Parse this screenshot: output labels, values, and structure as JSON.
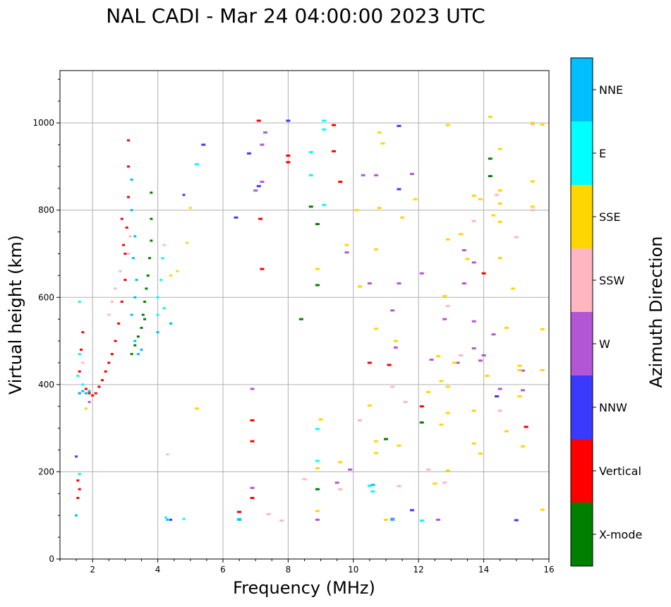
{
  "chart_data": {
    "type": "scatter",
    "title": "NAL CADI - Mar 24 04:00:00 2023 UTC",
    "xlabel": "Frequency (MHz)",
    "ylabel": "Virtual height (km)",
    "xlim": [
      1,
      16
    ],
    "ylim": [
      0,
      1120
    ],
    "x_ticks": [
      2,
      4,
      6,
      8,
      10,
      12,
      14,
      16
    ],
    "y_ticks": [
      0,
      200,
      400,
      600,
      800,
      1000
    ],
    "x_tick_labels": [
      "2",
      "4",
      "6",
      "8",
      "10",
      "12",
      "14",
      "16"
    ],
    "y_tick_labels": [
      "0",
      "200",
      "400",
      "600",
      "800",
      "1000"
    ],
    "grid": true,
    "colorbar": {
      "label": "Azimuth Direction",
      "categories": [
        {
          "name": "X-mode",
          "color": "#008000"
        },
        {
          "name": "Vertical",
          "color": "#ff0000"
        },
        {
          "name": "NNW",
          "color": "#3a3aff"
        },
        {
          "name": "W",
          "color": "#b356d6"
        },
        {
          "name": "SSW",
          "color": "#ffb6c1"
        },
        {
          "name": "SSE",
          "color": "#ffd700"
        },
        {
          "name": "E",
          "color": "#00ffff"
        },
        {
          "name": "NNE",
          "color": "#00bfff"
        }
      ]
    },
    "series": [
      {
        "name": "X-mode",
        "points": [
          [
            3.2,
            470
          ],
          [
            3.3,
            490
          ],
          [
            3.4,
            510
          ],
          [
            3.5,
            530
          ],
          [
            3.55,
            560
          ],
          [
            3.6,
            590
          ],
          [
            3.65,
            620
          ],
          [
            3.7,
            650
          ],
          [
            3.75,
            690
          ],
          [
            3.8,
            730
          ],
          [
            3.8,
            780
          ],
          [
            3.8,
            840
          ],
          [
            3.6,
            550
          ],
          [
            8.4,
            550
          ],
          [
            8.7,
            808
          ],
          [
            8.9,
            768
          ],
          [
            8.9,
            628
          ],
          [
            11.0,
            275
          ],
          [
            12.1,
            313
          ],
          [
            14.2,
            918
          ],
          [
            14.2,
            878
          ],
          [
            8.9,
            160
          ]
        ]
      },
      {
        "name": "Vertical",
        "points": [
          [
            1.55,
            140
          ],
          [
            1.6,
            160
          ],
          [
            1.55,
            180
          ],
          [
            1.6,
            380
          ],
          [
            1.6,
            430
          ],
          [
            1.65,
            480
          ],
          [
            1.7,
            520
          ],
          [
            1.8,
            390
          ],
          [
            1.9,
            380
          ],
          [
            2.0,
            375
          ],
          [
            2.1,
            380
          ],
          [
            2.2,
            395
          ],
          [
            2.3,
            410
          ],
          [
            2.4,
            430
          ],
          [
            2.5,
            450
          ],
          [
            2.6,
            470
          ],
          [
            2.7,
            500
          ],
          [
            2.8,
            540
          ],
          [
            2.9,
            590
          ],
          [
            3.0,
            640
          ],
          [
            3.0,
            700
          ],
          [
            3.05,
            760
          ],
          [
            3.1,
            830
          ],
          [
            3.1,
            900
          ],
          [
            3.1,
            960
          ],
          [
            2.9,
            780
          ],
          [
            2.95,
            720
          ],
          [
            7.1,
            1005
          ],
          [
            7.15,
            780
          ],
          [
            7.2,
            665
          ],
          [
            6.9,
            318
          ],
          [
            6.9,
            270
          ],
          [
            6.5,
            108
          ],
          [
            6.9,
            140
          ],
          [
            9.4,
            995
          ],
          [
            9.4,
            935
          ],
          [
            9.6,
            865
          ],
          [
            10.5,
            450
          ],
          [
            11.1,
            445
          ],
          [
            12.1,
            350
          ],
          [
            14.0,
            655
          ],
          [
            14.4,
            373
          ],
          [
            15.3,
            303
          ],
          [
            8.0,
            925
          ],
          [
            8.0,
            910
          ]
        ]
      },
      {
        "name": "NNW",
        "points": [
          [
            1.5,
            235
          ],
          [
            6.4,
            783
          ],
          [
            6.8,
            930
          ],
          [
            7.1,
            855
          ],
          [
            8.0,
            1005
          ],
          [
            11.4,
            993
          ],
          [
            11.4,
            848
          ],
          [
            11.8,
            112
          ],
          [
            15.0,
            89
          ],
          [
            14.4,
            373
          ],
          [
            4.8,
            835
          ],
          [
            5.4,
            950
          ],
          [
            4.4,
            90
          ]
        ]
      },
      {
        "name": "W",
        "points": [
          [
            1.9,
            360
          ],
          [
            6.9,
            163
          ],
          [
            6.9,
            390
          ],
          [
            7.0,
            845
          ],
          [
            7.2,
            865
          ],
          [
            7.2,
            950
          ],
          [
            7.3,
            978
          ],
          [
            9.5,
            175
          ],
          [
            9.9,
            205
          ],
          [
            9.8,
            703
          ],
          [
            10.3,
            880
          ],
          [
            10.5,
            632
          ],
          [
            10.7,
            880
          ],
          [
            11.2,
            570
          ],
          [
            11.3,
            485
          ],
          [
            11.4,
            632
          ],
          [
            11.8,
            883
          ],
          [
            12.1,
            655
          ],
          [
            12.4,
            457
          ],
          [
            12.8,
            550
          ],
          [
            13.2,
            450
          ],
          [
            13.4,
            708
          ],
          [
            13.4,
            632
          ],
          [
            13.7,
            680
          ],
          [
            13.7,
            545
          ],
          [
            13.7,
            483
          ],
          [
            13.9,
            455
          ],
          [
            14.0,
            467
          ],
          [
            14.3,
            515
          ],
          [
            14.5,
            390
          ],
          [
            15.2,
            387
          ],
          [
            15.2,
            432
          ],
          [
            12.6,
            90
          ],
          [
            8.9,
            90
          ],
          [
            11.2,
            92
          ]
        ]
      },
      {
        "name": "SSW",
        "points": [
          [
            1.7,
            450
          ],
          [
            2.5,
            560
          ],
          [
            2.6,
            590
          ],
          [
            2.7,
            620
          ],
          [
            2.85,
            660
          ],
          [
            3.1,
            700
          ],
          [
            3.15,
            740
          ],
          [
            4.2,
            720
          ],
          [
            4.3,
            240
          ],
          [
            7.8,
            88
          ],
          [
            7.4,
            103
          ],
          [
            8.5,
            183
          ],
          [
            9.6,
            160
          ],
          [
            11.2,
            395
          ],
          [
            11.6,
            360
          ],
          [
            12.3,
            205
          ],
          [
            12.9,
            580
          ],
          [
            13.3,
            467
          ],
          [
            13.7,
            775
          ],
          [
            14.4,
            835
          ],
          [
            14.5,
            340
          ],
          [
            15.0,
            738
          ],
          [
            15.5,
            800
          ],
          [
            15.5,
            997
          ],
          [
            10.2,
            318
          ],
          [
            11.4,
            167
          ],
          [
            12.8,
            175
          ]
        ]
      },
      {
        "name": "SSE",
        "points": [
          [
            1.8,
            345
          ],
          [
            4.4,
            650
          ],
          [
            4.6,
            660
          ],
          [
            4.9,
            725
          ],
          [
            5.0,
            805
          ],
          [
            5.2,
            345
          ],
          [
            8.9,
            110
          ],
          [
            8.9,
            208
          ],
          [
            8.9,
            665
          ],
          [
            9.0,
            320
          ],
          [
            9.6,
            222
          ],
          [
            9.8,
            720
          ],
          [
            10.1,
            800
          ],
          [
            10.2,
            625
          ],
          [
            10.5,
            352
          ],
          [
            10.7,
            528
          ],
          [
            10.7,
            243
          ],
          [
            10.8,
            978
          ],
          [
            10.8,
            805
          ],
          [
            10.9,
            953
          ],
          [
            10.7,
            710
          ],
          [
            11.0,
            90
          ],
          [
            11.3,
            500
          ],
          [
            11.4,
            260
          ],
          [
            11.5,
            783
          ],
          [
            11.9,
            825
          ],
          [
            12.1,
            88
          ],
          [
            12.3,
            383
          ],
          [
            12.5,
            173
          ],
          [
            12.6,
            465
          ],
          [
            12.7,
            408
          ],
          [
            12.7,
            308
          ],
          [
            12.8,
            603
          ],
          [
            12.9,
            733
          ],
          [
            12.9,
            995
          ],
          [
            12.9,
            395
          ],
          [
            12.9,
            335
          ],
          [
            13.1,
            450
          ],
          [
            13.3,
            745
          ],
          [
            13.5,
            688
          ],
          [
            13.7,
            833
          ],
          [
            13.7,
            340
          ],
          [
            13.7,
            265
          ],
          [
            13.9,
            825
          ],
          [
            13.9,
            242
          ],
          [
            14.1,
            420
          ],
          [
            14.2,
            1014
          ],
          [
            14.3,
            788
          ],
          [
            14.5,
            940
          ],
          [
            14.5,
            845
          ],
          [
            14.5,
            815
          ],
          [
            14.5,
            773
          ],
          [
            14.5,
            690
          ],
          [
            14.7,
            530
          ],
          [
            14.7,
            293
          ],
          [
            14.9,
            620
          ],
          [
            15.1,
            433
          ],
          [
            15.1,
            443
          ],
          [
            15.1,
            373
          ],
          [
            15.2,
            258
          ],
          [
            15.5,
            866
          ],
          [
            15.5,
            808
          ],
          [
            15.5,
            1000
          ],
          [
            15.8,
            996
          ],
          [
            15.8,
            527
          ],
          [
            15.8,
            433
          ],
          [
            15.8,
            113
          ],
          [
            12.9,
            203
          ],
          [
            10.7,
            270
          ]
        ]
      },
      {
        "name": "E",
        "points": [
          [
            1.6,
            590
          ],
          [
            1.6,
            470
          ],
          [
            1.55,
            420
          ],
          [
            1.7,
            400
          ],
          [
            1.6,
            195
          ],
          [
            4.0,
            600
          ],
          [
            4.1,
            640
          ],
          [
            4.15,
            690
          ],
          [
            4.0,
            560
          ],
          [
            4.2,
            575
          ],
          [
            4.4,
            540
          ],
          [
            4.25,
            95
          ],
          [
            4.8,
            92
          ],
          [
            5.2,
            905
          ],
          [
            8.7,
            933
          ],
          [
            8.7,
            880
          ],
          [
            8.9,
            298
          ],
          [
            8.9,
            225
          ],
          [
            9.1,
            985
          ],
          [
            9.1,
            1005
          ],
          [
            9.1,
            812
          ],
          [
            10.5,
            168
          ],
          [
            10.6,
            155
          ],
          [
            12.1,
            88
          ],
          [
            6.5,
            92
          ]
        ]
      },
      {
        "name": "NNE",
        "points": [
          [
            1.6,
            380
          ],
          [
            1.7,
            385
          ],
          [
            1.8,
            380
          ],
          [
            1.9,
            385
          ],
          [
            3.2,
            560
          ],
          [
            3.3,
            600
          ],
          [
            3.35,
            640
          ],
          [
            3.3,
            500
          ],
          [
            3.4,
            470
          ],
          [
            3.5,
            480
          ],
          [
            3.25,
            690
          ],
          [
            3.3,
            740
          ],
          [
            3.2,
            800
          ],
          [
            3.2,
            870
          ],
          [
            1.5,
            100
          ],
          [
            4.0,
            520
          ],
          [
            4.4,
            540
          ],
          [
            4.3,
            90
          ],
          [
            6.5,
            90
          ],
          [
            10.6,
            170
          ],
          [
            11.2,
            90
          ]
        ]
      }
    ]
  }
}
